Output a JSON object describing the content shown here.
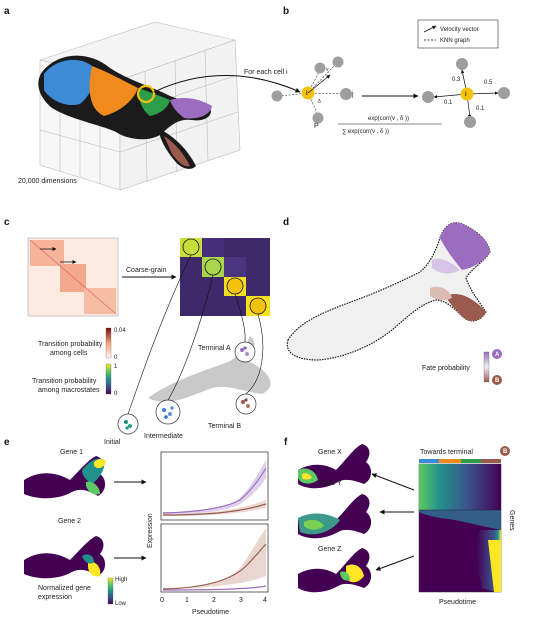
{
  "panels": {
    "a": {
      "label": "a",
      "dimensions": "20,000 dimensions"
    },
    "b": {
      "label": "b",
      "for_each_cell": "For each cell i",
      "legend": {
        "velocity": "Velocity vector",
        "knn": "KNN graph"
      },
      "node_i": "i",
      "node_j": "j",
      "v_i": "v",
      "delta_ij": "δ",
      "p_ij": "P",
      "numerator": "exp(corr(v , δ ))",
      "denominator": "∑       exp(corr(v , δ ))",
      "edge_values": [
        "0.3",
        "0.5",
        "0.1",
        "0.1"
      ]
    },
    "c": {
      "label": "c",
      "coarse_grain": "Coarse-grain",
      "cb1_max": "0.04",
      "cb1_min": "0",
      "cb1_title": [
        "Transition probability",
        "among cells"
      ],
      "cb2_max": "1",
      "cb2_min": "0",
      "cb2_title": [
        "Transition probability",
        "among macrostates"
      ],
      "initial": "Initial",
      "intermediate": "Intermediate",
      "terminal_a": "Terminal A",
      "terminal_b": "Terminal B"
    },
    "d": {
      "label": "d",
      "fate_probability": "Fate probability",
      "fate_a": "A",
      "fate_b": "B"
    },
    "e": {
      "label": "e",
      "gene1": "Gene 1",
      "gene2": "Gene 2",
      "norm_expr": [
        "Normalized gene",
        "expression"
      ],
      "high": "High",
      "low": "Low",
      "badge_a": "A",
      "badge_b": "B",
      "y_label": "Expression",
      "x_label": "Pseudotime",
      "x_ticks": [
        "0",
        "1",
        "2",
        "3",
        "4"
      ]
    },
    "f": {
      "label": "f",
      "gene_x": "Gene X",
      "gene_y": "Gene Y",
      "gene_z": "Gene Z",
      "towards_terminal": "Towards terminal",
      "badge_b": "B",
      "genes": "Genes",
      "pseudotime": "Pseudotime"
    }
  },
  "colors": {
    "orange": "#f08a1c",
    "yellow": "#f4c20d",
    "purple": "#9b6cc0",
    "brown": "#9b5a4e",
    "viridis_dark": "#440154",
    "viridis_yellow": "#fde725",
    "matrix_dark": "#3e2a6b"
  }
}
